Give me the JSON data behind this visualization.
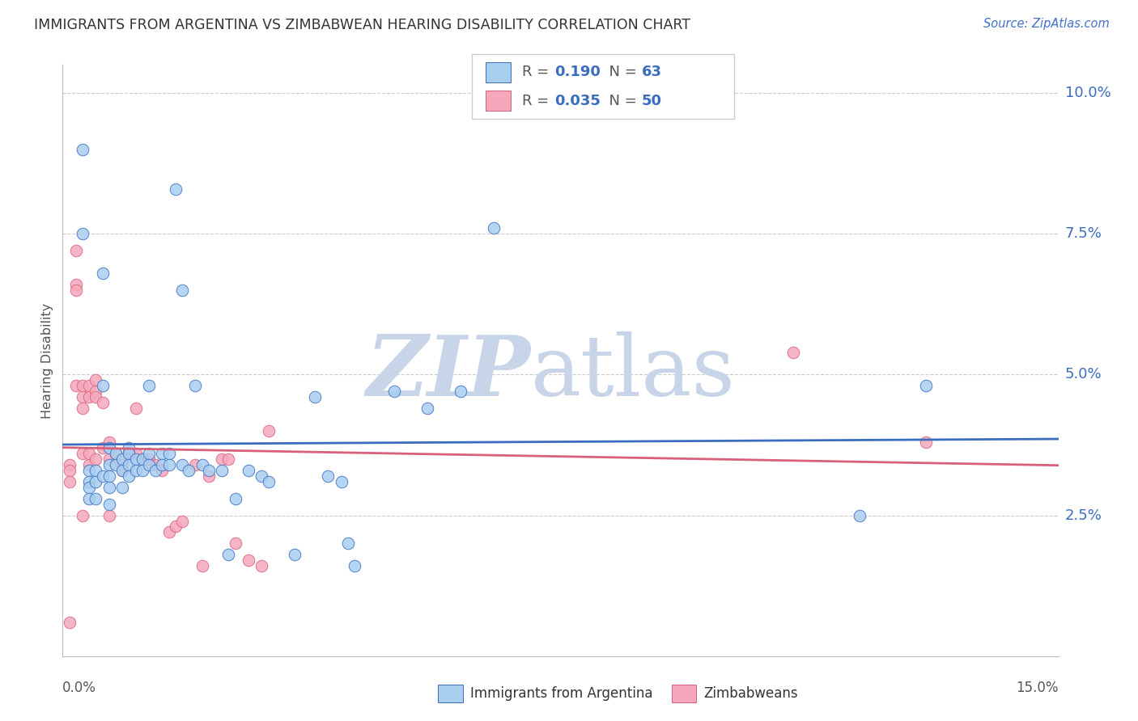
{
  "title": "IMMIGRANTS FROM ARGENTINA VS ZIMBABWEAN HEARING DISABILITY CORRELATION CHART",
  "source": "Source: ZipAtlas.com",
  "ylabel": "Hearing Disability",
  "xlim": [
    0.0,
    0.15
  ],
  "ylim": [
    0.0,
    0.105
  ],
  "ytick_values": [
    0.025,
    0.05,
    0.075,
    0.1
  ],
  "color_argentina": "#a8cef0",
  "color_zimbabwe": "#f5a8bc",
  "line_color_argentina": "#3b6dbe",
  "line_color_zimbabwe": "#d9607a",
  "watermark_color": "#c8d4e8",
  "argentina_x": [
    0.003,
    0.003,
    0.004,
    0.004,
    0.004,
    0.004,
    0.005,
    0.005,
    0.005,
    0.006,
    0.006,
    0.006,
    0.007,
    0.007,
    0.007,
    0.007,
    0.007,
    0.008,
    0.008,
    0.009,
    0.009,
    0.009,
    0.01,
    0.01,
    0.01,
    0.01,
    0.011,
    0.011,
    0.012,
    0.012,
    0.013,
    0.013,
    0.013,
    0.014,
    0.015,
    0.015,
    0.016,
    0.016,
    0.017,
    0.018,
    0.018,
    0.019,
    0.02,
    0.021,
    0.022,
    0.024,
    0.025,
    0.026,
    0.028,
    0.03,
    0.031,
    0.035,
    0.038,
    0.04,
    0.042,
    0.043,
    0.044,
    0.05,
    0.055,
    0.06,
    0.065,
    0.12,
    0.13
  ],
  "argentina_y": [
    0.09,
    0.075,
    0.033,
    0.031,
    0.03,
    0.028,
    0.033,
    0.031,
    0.028,
    0.068,
    0.048,
    0.032,
    0.037,
    0.034,
    0.032,
    0.03,
    0.027,
    0.036,
    0.034,
    0.035,
    0.033,
    0.03,
    0.037,
    0.036,
    0.034,
    0.032,
    0.035,
    0.033,
    0.035,
    0.033,
    0.048,
    0.036,
    0.034,
    0.033,
    0.036,
    0.034,
    0.036,
    0.034,
    0.083,
    0.065,
    0.034,
    0.033,
    0.048,
    0.034,
    0.033,
    0.033,
    0.018,
    0.028,
    0.033,
    0.032,
    0.031,
    0.018,
    0.046,
    0.032,
    0.031,
    0.02,
    0.016,
    0.047,
    0.044,
    0.047,
    0.076,
    0.025,
    0.048
  ],
  "zimbabwe_x": [
    0.001,
    0.001,
    0.001,
    0.001,
    0.002,
    0.002,
    0.002,
    0.002,
    0.003,
    0.003,
    0.003,
    0.003,
    0.003,
    0.004,
    0.004,
    0.004,
    0.004,
    0.005,
    0.005,
    0.005,
    0.005,
    0.006,
    0.006,
    0.007,
    0.007,
    0.007,
    0.008,
    0.009,
    0.009,
    0.01,
    0.011,
    0.011,
    0.012,
    0.013,
    0.014,
    0.015,
    0.016,
    0.017,
    0.018,
    0.02,
    0.021,
    0.022,
    0.024,
    0.025,
    0.026,
    0.028,
    0.03,
    0.031,
    0.11,
    0.13
  ],
  "zimbabwe_y": [
    0.034,
    0.033,
    0.031,
    0.006,
    0.072,
    0.066,
    0.065,
    0.048,
    0.048,
    0.046,
    0.044,
    0.036,
    0.025,
    0.048,
    0.046,
    0.036,
    0.034,
    0.049,
    0.047,
    0.046,
    0.035,
    0.045,
    0.037,
    0.038,
    0.035,
    0.025,
    0.036,
    0.034,
    0.033,
    0.036,
    0.044,
    0.036,
    0.035,
    0.035,
    0.034,
    0.033,
    0.022,
    0.023,
    0.024,
    0.034,
    0.016,
    0.032,
    0.035,
    0.035,
    0.02,
    0.017,
    0.016,
    0.04,
    0.054,
    0.038
  ]
}
